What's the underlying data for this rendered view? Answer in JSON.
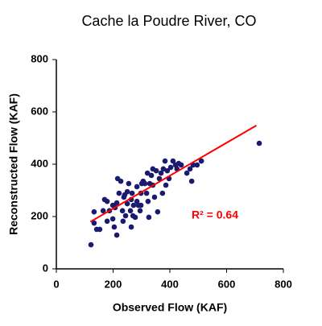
{
  "chart_data": {
    "type": "scatter",
    "title": "Cache la Poudre River, CO",
    "xlabel": "Observed Flow (KAF)",
    "ylabel": "Reconstructed Flow (KAF)",
    "annotation": "R² = 0.64",
    "annotation_color": "#ff0000",
    "color": "#1a1a6e",
    "xlim": [
      0,
      800
    ],
    "ylim": [
      0,
      800
    ],
    "xticks": [
      0,
      200,
      400,
      600,
      800
    ],
    "yticks": [
      0,
      200,
      400,
      600,
      800
    ],
    "grid": false,
    "x": [
      122,
      133,
      142,
      153,
      133,
      165,
      170,
      179,
      187,
      199,
      204,
      213,
      207,
      213,
      216,
      227,
      233,
      235,
      238,
      241,
      250,
      255,
      244,
      250,
      261,
      264,
      267,
      272,
      270,
      278,
      284,
      284,
      289,
      295,
      298,
      301,
      306,
      312,
      318,
      321,
      323,
      329,
      335,
      340,
      340,
      346,
      352,
      357,
      363,
      369,
      374,
      377,
      383,
      386,
      391,
      397,
      403,
      411,
      420,
      425,
      431,
      440,
      460,
      471,
      482,
      496,
      511,
      477,
      715,
      179,
      199,
      221,
      264,
      298,
      326
    ],
    "values": [
      92,
      175,
      151,
      151,
      218,
      222,
      265,
      258,
      222,
      191,
      160,
      129,
      234,
      252,
      345,
      335,
      222,
      182,
      274,
      283,
      295,
      326,
      203,
      249,
      222,
      265,
      289,
      243,
      203,
      197,
      258,
      314,
      243,
      222,
      289,
      326,
      335,
      326,
      289,
      366,
      258,
      326,
      357,
      382,
      320,
      274,
      375,
      218,
      345,
      366,
      289,
      382,
      412,
      320,
      375,
      345,
      388,
      412,
      397,
      382,
      403,
      397,
      366,
      382,
      397,
      397,
      412,
      335,
      480,
      182,
      243,
      289,
      160,
      243,
      197
    ],
    "trendline": {
      "x": [
        120,
        705
      ],
      "y": [
        180,
        548
      ],
      "color": "#ff0000"
    }
  }
}
